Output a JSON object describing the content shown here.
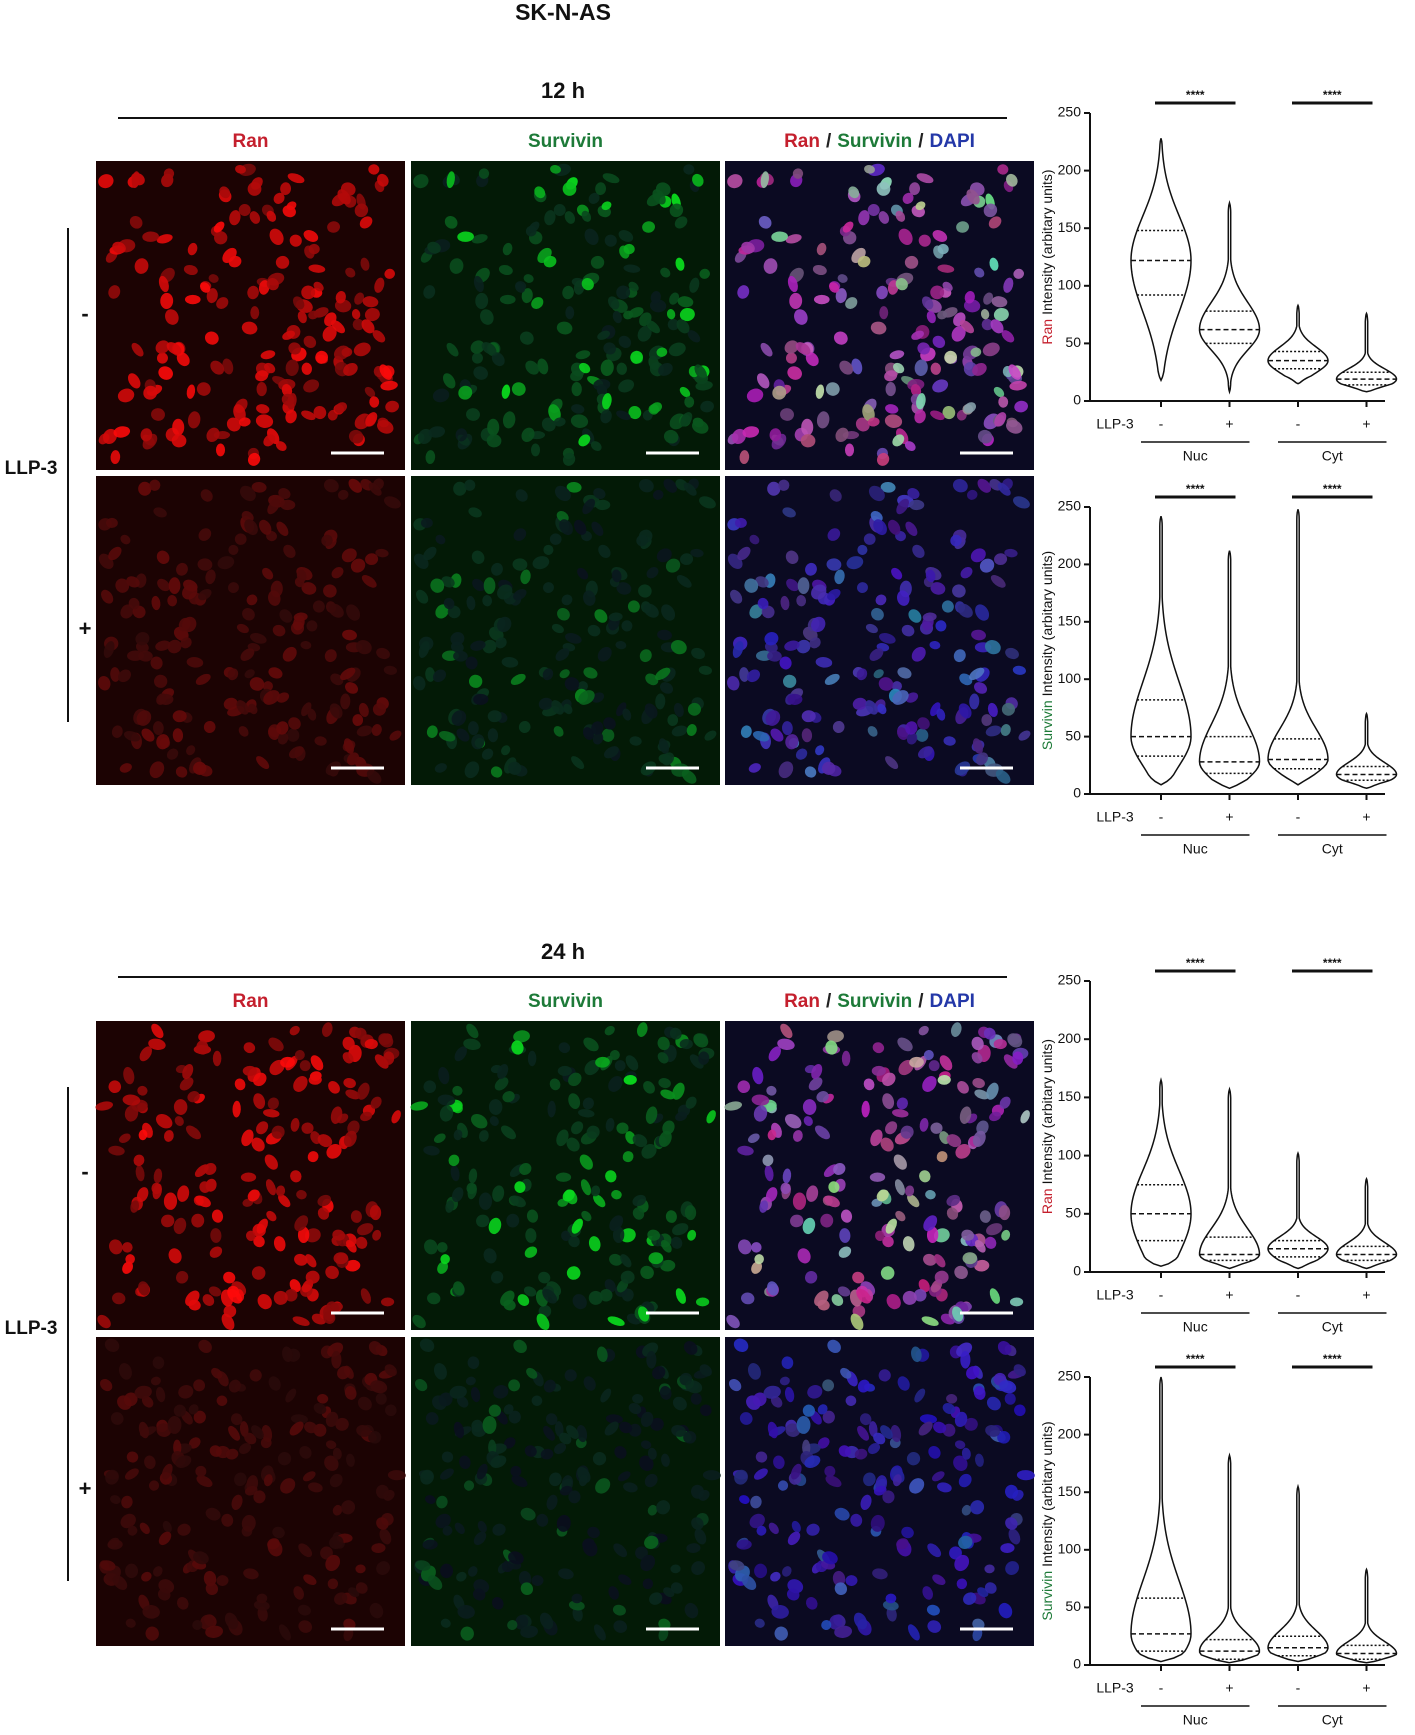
{
  "title": "SK-N-AS",
  "blocks": [
    {
      "time": "12 h",
      "row_group": "LLP-3",
      "rows": [
        "-",
        "+"
      ],
      "headers": [
        [
          {
            "text": "Ran",
            "color": "#c41f2d"
          }
        ],
        [
          {
            "text": "Survivin",
            "color": "#1d7a38"
          }
        ],
        [
          {
            "text": "Ran",
            "color": "#c41f2d"
          },
          {
            "text": "/",
            "color": "#222222"
          },
          {
            "text": "Survivin",
            "color": "#1d7a38"
          },
          {
            "text": "/",
            "color": "#222222"
          },
          {
            "text": "DAPI",
            "color": "#2438a8"
          }
        ]
      ]
    },
    {
      "time": "24 h",
      "row_group": "LLP-3",
      "rows": [
        "-",
        "+"
      ],
      "headers": [
        [
          {
            "text": "Ran",
            "color": "#c41f2d"
          }
        ],
        [
          {
            "text": "Survivin",
            "color": "#1d7a38"
          }
        ],
        [
          {
            "text": "Ran",
            "color": "#c41f2d"
          },
          {
            "text": "/",
            "color": "#222222"
          },
          {
            "text": "Survivin",
            "color": "#1d7a38"
          },
          {
            "text": "/",
            "color": "#222222"
          },
          {
            "text": "DAPI",
            "color": "#2438a8"
          }
        ]
      ]
    }
  ],
  "chart_data": [
    {
      "type": "violin",
      "ylabel_prefix": "Ran",
      "ylabel_prefix_color": "#c41f2d",
      "ylabel": "Intensity (arbitary units)",
      "ylim": [
        0,
        250
      ],
      "yticks": [
        0,
        50,
        100,
        150,
        200,
        250
      ],
      "x_label": "LLP-3",
      "categories": [
        "-",
        "+",
        "-",
        "+"
      ],
      "groups": [
        "Nuc",
        "Cyt"
      ],
      "significance": [
        "****",
        "****"
      ],
      "violins": [
        {
          "min": 18,
          "q1": 92,
          "median": 122,
          "q3": 148,
          "max": 228
        },
        {
          "min": 8,
          "q1": 50,
          "median": 62,
          "q3": 78,
          "max": 172
        },
        {
          "min": 15,
          "q1": 28,
          "median": 35,
          "q3": 43,
          "max": 83
        },
        {
          "min": 8,
          "q1": 14,
          "median": 19,
          "q3": 25,
          "max": 76
        }
      ]
    },
    {
      "type": "violin",
      "ylabel_prefix": "Survivin",
      "ylabel_prefix_color": "#1d7a38",
      "ylabel": "Intensity (arbitary units)",
      "ylim": [
        0,
        250
      ],
      "yticks": [
        0,
        50,
        100,
        150,
        200,
        250
      ],
      "x_label": "LLP-3",
      "categories": [
        "-",
        "+",
        "-",
        "+"
      ],
      "groups": [
        "Nuc",
        "Cyt"
      ],
      "significance": [
        "****",
        "****"
      ],
      "violins": [
        {
          "min": 8,
          "q1": 33,
          "median": 50,
          "q3": 82,
          "max": 242
        },
        {
          "min": 5,
          "q1": 18,
          "median": 28,
          "q3": 50,
          "max": 212
        },
        {
          "min": 8,
          "q1": 22,
          "median": 30,
          "q3": 48,
          "max": 248
        },
        {
          "min": 5,
          "q1": 12,
          "median": 17,
          "q3": 24,
          "max": 70
        }
      ]
    },
    {
      "type": "violin",
      "ylabel_prefix": "Ran",
      "ylabel_prefix_color": "#c41f2d",
      "ylabel": "Intensity (arbitary units)",
      "ylim": [
        0,
        250
      ],
      "yticks": [
        0,
        50,
        100,
        150,
        200,
        250
      ],
      "x_label": "LLP-3",
      "categories": [
        "-",
        "+",
        "-",
        "+"
      ],
      "groups": [
        "Nuc",
        "Cyt"
      ],
      "significance": [
        "****",
        "****"
      ],
      "violins": [
        {
          "min": 5,
          "q1": 27,
          "median": 50,
          "q3": 75,
          "max": 165
        },
        {
          "min": 3,
          "q1": 10,
          "median": 15,
          "q3": 30,
          "max": 157
        },
        {
          "min": 3,
          "q1": 13,
          "median": 20,
          "q3": 27,
          "max": 102
        },
        {
          "min": 3,
          "q1": 10,
          "median": 15,
          "q3": 22,
          "max": 80
        }
      ]
    },
    {
      "type": "violin",
      "ylabel_prefix": "Survivin",
      "ylabel_prefix_color": "#1d7a38",
      "ylabel": "Intensity (arbitary units)",
      "ylim": [
        0,
        250
      ],
      "yticks": [
        0,
        50,
        100,
        150,
        200,
        250
      ],
      "x_label": "LLP-3",
      "categories": [
        "-",
        "+",
        "-",
        "+"
      ],
      "groups": [
        "Nuc",
        "Cyt"
      ],
      "significance": [
        "****",
        "****"
      ],
      "violins": [
        {
          "min": 3,
          "q1": 12,
          "median": 27,
          "q3": 58,
          "max": 250
        },
        {
          "min": 2,
          "q1": 5,
          "median": 12,
          "q3": 22,
          "max": 182
        },
        {
          "min": 3,
          "q1": 8,
          "median": 15,
          "q3": 25,
          "max": 155
        },
        {
          "min": 2,
          "q1": 5,
          "median": 10,
          "q3": 17,
          "max": 83
        }
      ]
    }
  ]
}
